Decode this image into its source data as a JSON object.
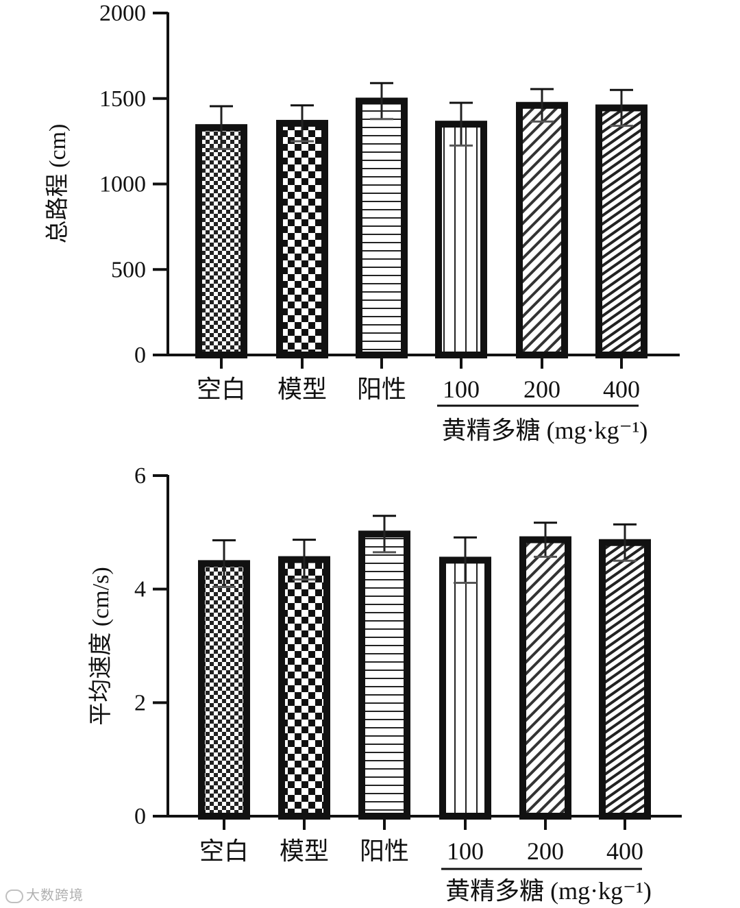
{
  "chart_data": [
    {
      "type": "bar",
      "ylabel": "总路程 (cm)",
      "ylim": [
        0,
        2000
      ],
      "yticks": [
        "0",
        "500",
        "1000",
        "1500",
        "2000"
      ],
      "categories": [
        "空白",
        "模型",
        "阳性",
        "100",
        "200",
        "400"
      ],
      "values": [
        1330,
        1355,
        1485,
        1350,
        1460,
        1445
      ],
      "errors": [
        125,
        105,
        105,
        125,
        95,
        105
      ],
      "group_label": "黄精多糖 (mg·kg⁻¹)",
      "patterns": [
        "fine-checker",
        "coarse-checker",
        "horizontal-lines",
        "vertical-lines",
        "diagonal-lines",
        "diagonal-lines-dense"
      ],
      "grid": false,
      "legend": "none"
    },
    {
      "type": "bar",
      "ylabel": "平均速度 (cm/s)",
      "ylim": [
        0,
        6
      ],
      "yticks": [
        "0",
        "2",
        "4",
        "6"
      ],
      "categories": [
        "空白",
        "模型",
        "阳性",
        "100",
        "200",
        "400"
      ],
      "values": [
        4.45,
        4.52,
        4.97,
        4.51,
        4.87,
        4.82
      ],
      "errors": [
        0.41,
        0.35,
        0.32,
        0.4,
        0.3,
        0.32
      ],
      "group_label": "黄精多糖 (mg·kg⁻¹)",
      "patterns": [
        "fine-checker",
        "coarse-checker",
        "horizontal-lines",
        "vertical-lines",
        "diagonal-lines",
        "diagonal-lines-dense"
      ],
      "grid": false,
      "legend": "none"
    }
  ],
  "watermark": {
    "text": "大数跨境"
  },
  "colors": {
    "ink": "#111111",
    "background": "#ffffff"
  }
}
